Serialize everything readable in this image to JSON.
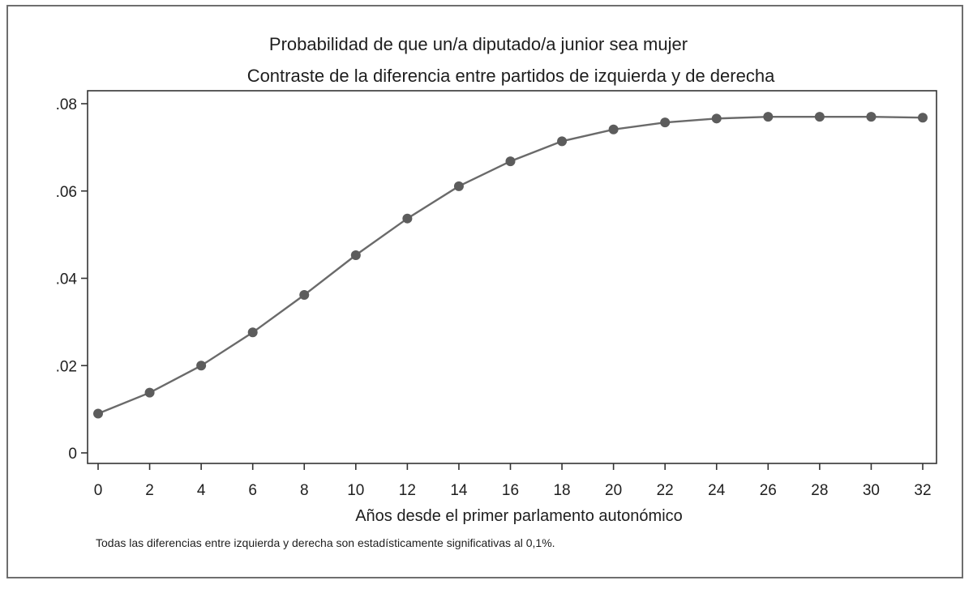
{
  "chart_data": {
    "type": "line",
    "title": "Probabilidad de que un/a diputado/a junior sea mujer",
    "subtitle": "Contraste de la diferencia entre partidos de izquierda y de derecha",
    "xlabel": "Años desde el primer parlamento autonómico",
    "ylabel": "",
    "note": "Todas las diferencias entre izquierda y derecha son estadísticamente significativas al 0,1%.",
    "xlim": [
      0,
      32
    ],
    "ylim": [
      0,
      0.08
    ],
    "x_ticks": [
      0,
      2,
      4,
      6,
      8,
      10,
      12,
      14,
      16,
      18,
      20,
      22,
      24,
      26,
      28,
      30,
      32
    ],
    "y_ticks": [
      0,
      0.02,
      0.04,
      0.06,
      0.08
    ],
    "y_tick_labels": [
      "0",
      ".02",
      ".04",
      ".06",
      ".08"
    ],
    "grid": false,
    "series": [
      {
        "x": [
          0,
          2,
          4,
          6,
          8,
          10,
          12,
          14,
          16,
          18,
          20,
          22,
          24,
          26,
          28,
          30,
          32
        ],
        "y": [
          0.009,
          0.0138,
          0.02,
          0.0276,
          0.0362,
          0.0453,
          0.0537,
          0.0611,
          0.0668,
          0.0714,
          0.0741,
          0.0757,
          0.0766,
          0.077,
          0.077,
          0.077,
          0.0768
        ]
      }
    ],
    "colors": {
      "line": "#6a6a6a",
      "marker": "#5c5c5c",
      "frame": "#6e6e6e"
    }
  }
}
